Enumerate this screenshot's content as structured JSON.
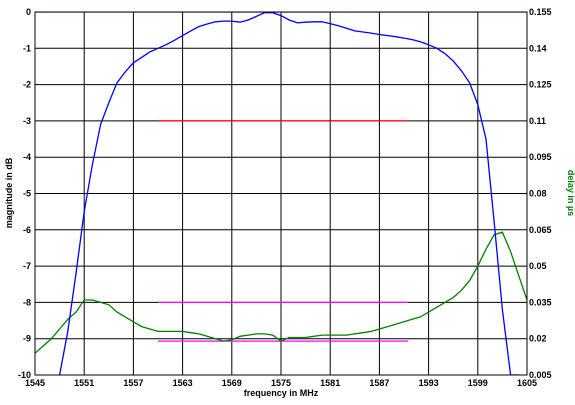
{
  "chart_data": {
    "type": "line",
    "title": "",
    "xlabel": "frequency in MHz",
    "ylabel": "magnitude in dB",
    "y2label": "delay in µs",
    "xlim": [
      1545,
      1605
    ],
    "ylim": [
      -10,
      0
    ],
    "y2lim": [
      0.005,
      0.155
    ],
    "xticks": [
      1545,
      1551,
      1557,
      1563,
      1569,
      1575,
      1581,
      1587,
      1593,
      1599,
      1605
    ],
    "yticks": [
      0,
      -1,
      -2,
      -3,
      -4,
      -5,
      -6,
      -7,
      -8,
      -9,
      -10
    ],
    "y2ticks": [
      "0.155",
      "0.14",
      "0.125",
      "0.11",
      "0.095",
      "0.08",
      "0.065",
      "0.05",
      "0.035",
      "0.02",
      "0.005"
    ],
    "grid": true,
    "colors": {
      "magnitude": "#0000ff",
      "delay": "#008000",
      "ref_mag": "#ff0000",
      "ref_delay": "#ff00ff",
      "grid": "#000000"
    },
    "magnitude_series": {
      "x": [
        1548,
        1549,
        1550,
        1551,
        1552,
        1553,
        1554,
        1555,
        1556,
        1557,
        1558,
        1559,
        1560,
        1561,
        1562,
        1563,
        1564,
        1565,
        1566,
        1567,
        1568,
        1569,
        1570,
        1571,
        1572,
        1573,
        1574,
        1575,
        1576,
        1577,
        1578,
        1579,
        1580,
        1581,
        1582,
        1583,
        1584,
        1585,
        1586,
        1587,
        1588,
        1589,
        1590,
        1591,
        1592,
        1593,
        1594,
        1595,
        1596,
        1597,
        1598,
        1599,
        1600,
        1601,
        1602,
        1603,
        1604
      ],
      "y": [
        -10,
        -8.8,
        -7.2,
        -5.5,
        -4.2,
        -3.1,
        -2.5,
        -1.95,
        -1.65,
        -1.4,
        -1.25,
        -1.1,
        -1.0,
        -0.9,
        -0.78,
        -0.65,
        -0.52,
        -0.4,
        -0.33,
        -0.27,
        -0.25,
        -0.25,
        -0.28,
        -0.22,
        -0.12,
        -0.02,
        -0.02,
        -0.1,
        -0.22,
        -0.3,
        -0.28,
        -0.27,
        -0.27,
        -0.32,
        -0.38,
        -0.45,
        -0.52,
        -0.55,
        -0.58,
        -0.62,
        -0.65,
        -0.68,
        -0.72,
        -0.76,
        -0.82,
        -0.9,
        -1.0,
        -1.15,
        -1.35,
        -1.62,
        -1.95,
        -2.55,
        -3.5,
        -5.8,
        -8.2,
        -10,
        -10
      ]
    },
    "delay_series": {
      "x": [
        1545,
        1546,
        1547,
        1548,
        1549,
        1550,
        1551,
        1552,
        1553,
        1554,
        1555,
        1556,
        1557,
        1558,
        1559,
        1560,
        1561,
        1562,
        1563,
        1564,
        1565,
        1566,
        1567,
        1568,
        1569,
        1570,
        1571,
        1572,
        1573,
        1574,
        1575,
        1576,
        1577,
        1578,
        1579,
        1580,
        1581,
        1582,
        1583,
        1584,
        1585,
        1586,
        1587,
        1588,
        1589,
        1590,
        1591,
        1592,
        1593,
        1594,
        1595,
        1596,
        1597,
        1598,
        1599,
        1600,
        1601,
        1602,
        1603,
        1604,
        1605
      ],
      "y": [
        0.014,
        0.017,
        0.02,
        0.024,
        0.028,
        0.031,
        0.036,
        0.036,
        0.035,
        0.034,
        0.031,
        0.029,
        0.027,
        0.025,
        0.024,
        0.023,
        0.023,
        0.023,
        0.023,
        0.0225,
        0.022,
        0.021,
        0.02,
        0.019,
        0.0195,
        0.021,
        0.0215,
        0.022,
        0.022,
        0.0215,
        0.019,
        0.0205,
        0.0205,
        0.0205,
        0.021,
        0.0215,
        0.0215,
        0.0215,
        0.0215,
        0.022,
        0.0225,
        0.023,
        0.024,
        0.025,
        0.026,
        0.027,
        0.028,
        0.029,
        0.031,
        0.033,
        0.035,
        0.037,
        0.04,
        0.044,
        0.05,
        0.057,
        0.063,
        0.064,
        0.056,
        0.046,
        0.036
      ]
    },
    "ref_mag_upper": {
      "x": [
        1545,
        1605
      ],
      "y": [
        0,
        0
      ]
    },
    "ref_mag_lower": {
      "x": [
        1560,
        1590.5
      ],
      "y": [
        -3,
        -3
      ]
    },
    "ref_delay_upper": {
      "x": [
        1560,
        1590.5
      ],
      "y": [
        0.035,
        0.035
      ]
    },
    "ref_delay_lower": {
      "x": [
        1560,
        1590.5
      ],
      "y": [
        0.019,
        0.019
      ]
    }
  }
}
